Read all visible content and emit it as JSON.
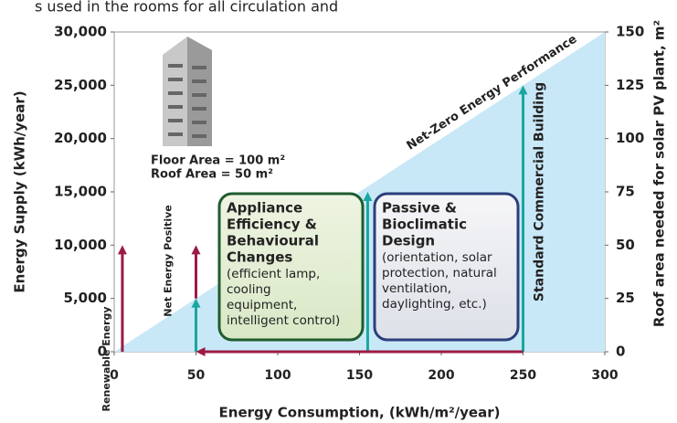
{
  "header_fragment": "s used in the rooms for all circulation and",
  "chart_data": {
    "type": "area",
    "xlabel": "Energy Consumption, (kWh/m²/year)",
    "ylabel": "Energy Supply (kWh/year)",
    "y2label": "Roof area needed for solar PV plant, m²",
    "xlim": [
      0,
      300
    ],
    "ylim": [
      0,
      30000
    ],
    "y2lim": [
      0,
      150
    ],
    "xticks": [
      0,
      50,
      100,
      150,
      200,
      250,
      300
    ],
    "yticks": [
      0,
      {
        "value": 5000,
        "label": "5,000"
      },
      {
        "value": 10000,
        "label": "10,000"
      },
      {
        "value": 15000,
        "label": "15,000"
      },
      {
        "value": 20000,
        "label": "20,000"
      },
      {
        "value": 25000,
        "label": "25,000"
      },
      {
        "value": 30000,
        "label": "30,000"
      }
    ],
    "y2ticks": [
      0,
      25,
      50,
      75,
      100,
      125,
      150
    ],
    "grid": false,
    "series": [
      {
        "name": "Net-Zero Energy Performance",
        "color": "#c9e8f7",
        "x": [
          0,
          300
        ],
        "values": [
          0,
          30000
        ]
      }
    ],
    "vertical_arrows": [
      {
        "label": "Renewable Energy",
        "x": 5,
        "from": 0,
        "to": 10000,
        "color": "#9b1b43"
      },
      {
        "label": "Net Energy Positive",
        "x": 50,
        "from": 5000,
        "to": 10000,
        "color": "#9b1b43"
      },
      {
        "x": 50,
        "from": 0,
        "to": 5000,
        "color": "#1aa7a0"
      },
      {
        "x": 155,
        "from": 0,
        "to": 15000,
        "color": "#1aa7a0"
      },
      {
        "label": "Standard Commercial Building",
        "x": 250,
        "from": 0,
        "to": 25000,
        "color": "#1aa7a0"
      }
    ],
    "horizontal_arrow": {
      "y": 0,
      "from": 250,
      "to": 50,
      "color": "#9b1b43"
    },
    "building_notes": [
      "Floor Area = 100 m²",
      "Roof Area = 50 m²"
    ],
    "boxes": [
      {
        "title": [
          "Appliance",
          "Efficiency &",
          "Behavioural",
          "Changes"
        ],
        "body": [
          "(efficient lamp,",
          "cooling",
          "equipment,",
          "intelligent control)"
        ]
      },
      {
        "title": [
          "Passive &",
          "Bioclimatic",
          "Design"
        ],
        "body": [
          "(orientation, solar",
          "protection, natural",
          "ventilation,",
          "daylighting, etc.)"
        ]
      }
    ]
  }
}
